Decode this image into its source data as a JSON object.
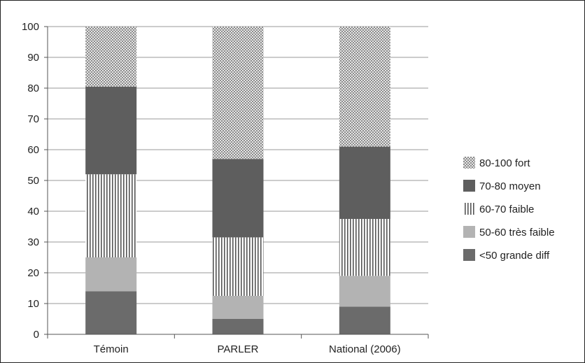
{
  "chart_data": {
    "type": "bar",
    "stacked": true,
    "categories": [
      "Témoin",
      "PARLER",
      "National (2006)"
    ],
    "series": [
      {
        "name": "<50 grande diff",
        "values": [
          14,
          5,
          9
        ],
        "color": "#6b6b6b",
        "pattern": "solid-dark"
      },
      {
        "name": "50-60 très faible",
        "values": [
          11,
          7.5,
          10
        ],
        "color": "#b3b3b3",
        "pattern": "solid-light"
      },
      {
        "name": "60-70 faible",
        "values": [
          27,
          19,
          18.5
        ],
        "color": "#7a7a7a",
        "pattern": "vertical-stripes"
      },
      {
        "name": "70-80 moyen",
        "values": [
          28.5,
          25.5,
          23.5
        ],
        "color": "#5e5e5e",
        "pattern": "solid-dark"
      },
      {
        "name": "80-100 fort",
        "values": [
          19.5,
          43,
          39
        ],
        "color": "#9a9a9a",
        "pattern": "checker"
      }
    ],
    "legend_order": [
      "80-100 fort",
      "70-80 moyen",
      "60-70 faible",
      "50-60 très faible",
      "<50 grande diff"
    ],
    "yticks": [
      0,
      10,
      20,
      30,
      40,
      50,
      60,
      70,
      80,
      90,
      100
    ],
    "ylim": [
      0,
      100
    ],
    "grid": true,
    "legend_position": "right"
  }
}
